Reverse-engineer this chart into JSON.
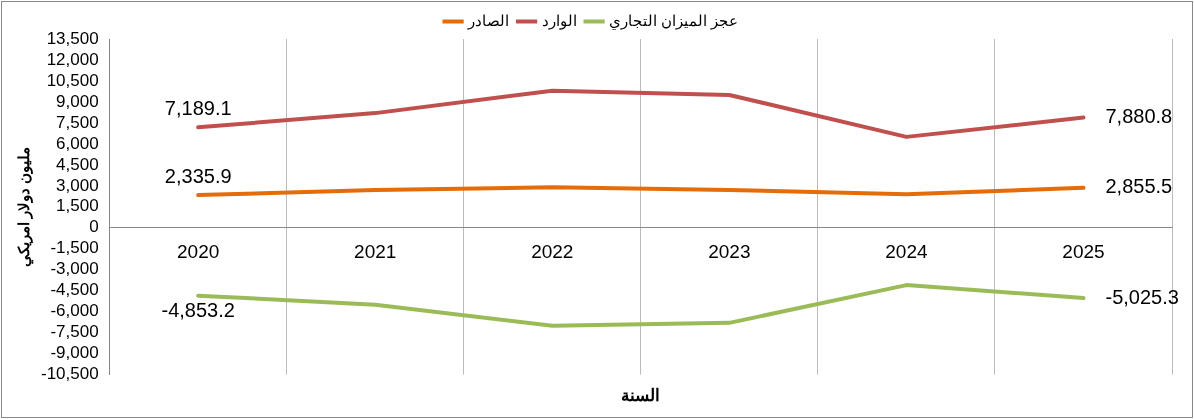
{
  "chart_data": {
    "type": "line",
    "xlabel": "السنة",
    "ylabel": "مليون دولار امريكي",
    "categories": [
      "2020",
      "2021",
      "2022",
      "2023",
      "2024",
      "2025"
    ],
    "series": [
      {
        "name": "الصادر",
        "color": "#e46c0a",
        "values": [
          2335.9,
          2700,
          2900,
          2700,
          2400,
          2855.5
        ],
        "value_labels": [
          "2,335.9",
          null,
          null,
          null,
          null,
          "2,855.5"
        ]
      },
      {
        "name": "الوارد",
        "color": "#c0504d",
        "values": [
          7189.1,
          8200,
          9800,
          9500,
          6500,
          7880.8
        ],
        "value_labels": [
          "7,189.1",
          null,
          null,
          null,
          null,
          "7,880.8"
        ]
      },
      {
        "name": "عجز الميزان التجاري",
        "color": "#9bbb59",
        "values": [
          -4853.2,
          -5500,
          -7000,
          -6800,
          -4100,
          -5025.3
        ],
        "value_labels": [
          "-4,853.2",
          null,
          null,
          null,
          null,
          "-5,025.3"
        ]
      }
    ],
    "ylim": [
      -10500,
      13500
    ],
    "yticks": [
      {
        "value": 13500,
        "label": "13,500"
      },
      {
        "value": 12000,
        "label": "12,000"
      },
      {
        "value": 10500,
        "label": "10,500"
      },
      {
        "value": 9000,
        "label": "9,000"
      },
      {
        "value": 7500,
        "label": "7,500"
      },
      {
        "value": 6000,
        "label": "6,000"
      },
      {
        "value": 4500,
        "label": "4,500"
      },
      {
        "value": 3000,
        "label": "3,000"
      },
      {
        "value": 1500,
        "label": "1,500"
      },
      0,
      {
        "value": -1500,
        "label": "-1,500"
      },
      {
        "value": -3000,
        "label": "-3,000"
      },
      {
        "value": -4500,
        "label": "-4,500"
      },
      {
        "value": -6000,
        "label": "-6,000"
      },
      {
        "value": -7500,
        "label": "-7,500"
      },
      {
        "value": -9000,
        "label": "-9,000"
      },
      {
        "value": -10500,
        "label": "-10,500"
      }
    ],
    "grid": "x",
    "legend": "top",
    "marker": "none",
    "line_style": "solid"
  }
}
